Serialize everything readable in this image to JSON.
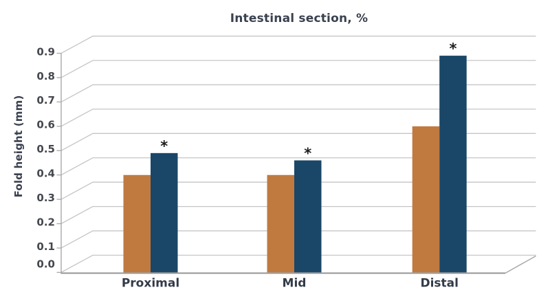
{
  "chart_data": {
    "type": "bar",
    "style": "3d-perspective-clustered-column",
    "title": "Intestinal section, %",
    "xlabel": "",
    "ylabel": "Fold height (mm)",
    "categories": [
      "Proximal",
      "Mid",
      "Distal"
    ],
    "series": [
      {
        "color": "#c07a40",
        "values": [
          0.4,
          0.4,
          0.6
        ]
      },
      {
        "color": "#1a4768",
        "values": [
          0.49,
          0.46,
          0.89
        ]
      }
    ],
    "significance_markers": [
      {
        "text": "*",
        "category_index": 0,
        "series_index": 1
      },
      {
        "text": "*",
        "category_index": 1,
        "series_index": 1
      },
      {
        "text": "*",
        "category_index": 2,
        "series_index": 1
      }
    ],
    "yticks": [
      "0.0",
      "0.1",
      "0.2",
      "0.3",
      "0.4",
      "0.5",
      "0.6",
      "0.7",
      "0.8",
      "0.9"
    ],
    "ylim": [
      0.0,
      0.9
    ],
    "grid": true,
    "legend": null,
    "palette": {
      "gridline": "#c5c5c5",
      "axis_line": "#a8a8a8",
      "tick_text": "#45484e",
      "category_text": "#333b49",
      "marker_text": "#1d1d1d"
    }
  }
}
